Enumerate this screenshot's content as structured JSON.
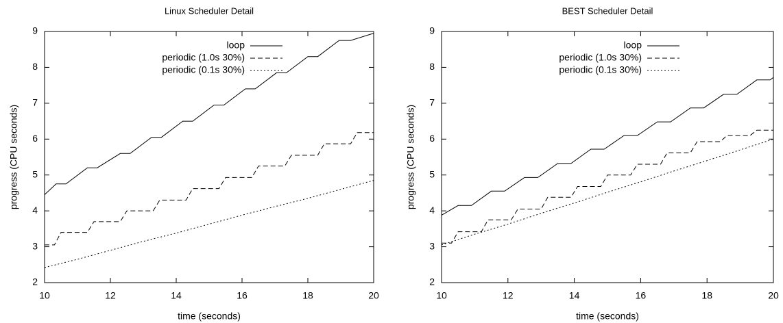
{
  "chart_data": [
    {
      "type": "line",
      "title": "Linux Scheduler Detail",
      "xlabel": "time (seconds)",
      "ylabel": "progress (CPU seconds)",
      "xlim": [
        10,
        20
      ],
      "ylim": [
        2,
        9
      ],
      "xticks": [
        10,
        12,
        14,
        16,
        18,
        20
      ],
      "yticks": [
        2,
        3,
        4,
        5,
        6,
        7,
        8,
        9
      ],
      "legend": "top-right",
      "series": [
        {
          "name": "loop",
          "color": "#000000",
          "style": "solid",
          "x": [
            10,
            10.35,
            10.65,
            11.3,
            11.6,
            12.3,
            12.6,
            13.25,
            13.55,
            14.2,
            14.5,
            15.15,
            15.45,
            16.1,
            16.4,
            17.05,
            17.35,
            18.0,
            18.3,
            18.95,
            19.3,
            20
          ],
          "values": [
            4.45,
            4.75,
            4.75,
            5.2,
            5.2,
            5.6,
            5.6,
            6.05,
            6.05,
            6.5,
            6.5,
            6.95,
            6.95,
            7.4,
            7.4,
            7.85,
            7.85,
            8.3,
            8.3,
            8.75,
            8.75,
            8.95
          ]
        },
        {
          "name": "periodic (1.0s 30%)",
          "color": "#000000",
          "style": "dashed",
          "x": [
            10,
            10.3,
            10.5,
            11.3,
            11.5,
            12.3,
            12.5,
            13.3,
            13.5,
            14.3,
            14.5,
            15.3,
            15.5,
            16.3,
            16.5,
            17.3,
            17.5,
            18.3,
            18.5,
            19.3,
            19.5,
            20
          ],
          "values": [
            3.05,
            3.05,
            3.4,
            3.4,
            3.7,
            3.7,
            4.0,
            4.0,
            4.3,
            4.3,
            4.62,
            4.62,
            4.93,
            4.93,
            5.25,
            5.25,
            5.55,
            5.55,
            5.87,
            5.87,
            6.18,
            6.18
          ]
        },
        {
          "name": "periodic (0.1s 30%)",
          "color": "#000000",
          "style": "dotted",
          "x": [
            10,
            11,
            12,
            13,
            14,
            15,
            16,
            17,
            18,
            19,
            20
          ],
          "values": [
            2.42,
            2.65,
            2.9,
            3.15,
            3.38,
            3.63,
            3.88,
            4.12,
            4.35,
            4.6,
            4.85
          ]
        }
      ]
    },
    {
      "type": "line",
      "title": "BEST Scheduler Detail",
      "xlabel": "time (seconds)",
      "ylabel": "progress (CPU seconds)",
      "xlim": [
        10,
        20
      ],
      "ylim": [
        2,
        9
      ],
      "xticks": [
        10,
        12,
        14,
        16,
        18,
        20
      ],
      "yticks": [
        2,
        3,
        4,
        5,
        6,
        7,
        8,
        9
      ],
      "legend": "top-right",
      "series": [
        {
          "name": "loop",
          "color": "#000000",
          "style": "solid",
          "x": [
            10,
            10.5,
            10.9,
            11.5,
            11.9,
            12.5,
            12.9,
            13.5,
            13.9,
            14.5,
            14.9,
            15.5,
            15.9,
            16.5,
            16.9,
            17.5,
            17.9,
            18.5,
            18.9,
            19.5,
            19.9,
            20
          ],
          "values": [
            3.88,
            4.15,
            4.15,
            4.55,
            4.55,
            4.93,
            4.93,
            5.32,
            5.32,
            5.72,
            5.72,
            6.1,
            6.1,
            6.48,
            6.48,
            6.87,
            6.87,
            7.25,
            7.25,
            7.65,
            7.65,
            7.72
          ]
        },
        {
          "name": "periodic (1.0s 30%)",
          "color": "#000000",
          "style": "dashed",
          "x": [
            10,
            10.3,
            10.5,
            11.2,
            11.4,
            12.1,
            12.3,
            13.0,
            13.2,
            13.9,
            14.1,
            14.8,
            15.0,
            15.7,
            15.9,
            16.6,
            16.8,
            17.5,
            17.7,
            18.4,
            18.6,
            19.3,
            19.5,
            20
          ],
          "values": [
            3.1,
            3.1,
            3.42,
            3.42,
            3.75,
            3.75,
            4.05,
            4.05,
            4.38,
            4.38,
            4.68,
            4.68,
            5.0,
            5.0,
            5.3,
            5.3,
            5.62,
            5.62,
            5.93,
            5.93,
            6.1,
            6.1,
            6.25,
            6.25
          ]
        },
        {
          "name": "periodic (0.1s 30%)",
          "color": "#000000",
          "style": "dotted",
          "x": [
            10,
            11,
            12,
            13,
            14,
            15,
            16,
            17,
            18,
            19,
            20
          ],
          "values": [
            3.05,
            3.35,
            3.63,
            3.93,
            4.22,
            4.52,
            4.81,
            5.11,
            5.4,
            5.7,
            6.0
          ]
        }
      ]
    }
  ]
}
